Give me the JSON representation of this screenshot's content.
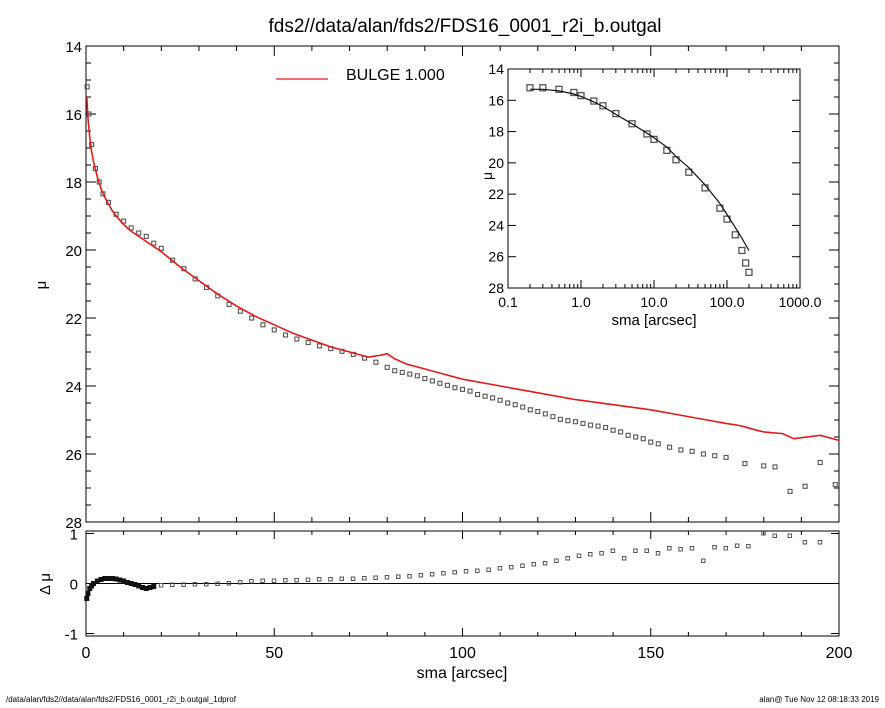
{
  "title": "fds2//data/alan/fds2/FDS16_0001_r2i_b.outgal",
  "footer_left": "/data/alan/fds2//data/alan/fds2/FDS16_0001_r2i_b.outgal_1dprof",
  "footer_right": "alan@  Tue Nov 12 08:18:33 2019",
  "colors": {
    "model": "#e31a1c",
    "data": "#555555",
    "axes": "#000000"
  },
  "chart_data": [
    {
      "type": "line",
      "panel": "main",
      "xlabel": "sma [arcsec]",
      "ylabel": "μ",
      "xlim": [
        0,
        200
      ],
      "ylim": [
        28,
        14
      ],
      "x_ticks": [
        0,
        50,
        100,
        150,
        200
      ],
      "y_ticks": [
        14,
        16,
        18,
        20,
        22,
        24,
        26,
        28
      ],
      "legend": {
        "label": "BULGE  1.000",
        "position": "top"
      },
      "series": [
        {
          "name": "BULGE  1.000",
          "kind": "line",
          "x": [
            0.2,
            0.5,
            1,
            1.5,
            2,
            3,
            4,
            5,
            6,
            7,
            8,
            10,
            12,
            14,
            16,
            18,
            20,
            25,
            30,
            35,
            40,
            45,
            50,
            55,
            60,
            65,
            70,
            75,
            78,
            80,
            82,
            85,
            90,
            95,
            100,
            110,
            120,
            130,
            140,
            150,
            160,
            165,
            170,
            173,
            175,
            178,
            180,
            185,
            188,
            195,
            200
          ],
          "y": [
            15.5,
            16.1,
            16.7,
            17.1,
            17.4,
            17.85,
            18.2,
            18.45,
            18.65,
            18.85,
            19.0,
            19.25,
            19.45,
            19.6,
            19.75,
            19.9,
            20.05,
            20.5,
            20.9,
            21.3,
            21.65,
            21.95,
            22.2,
            22.45,
            22.65,
            22.85,
            23.0,
            23.15,
            23.1,
            23.05,
            23.2,
            23.35,
            23.5,
            23.65,
            23.8,
            24.0,
            24.2,
            24.4,
            24.55,
            24.7,
            24.9,
            25.0,
            25.1,
            25.15,
            25.2,
            25.3,
            25.35,
            25.4,
            25.55,
            25.45,
            25.6
          ]
        },
        {
          "kind": "markers",
          "x": [
            0.3,
            0.8,
            1.5,
            2.5,
            3.5,
            4.5,
            6,
            8,
            10,
            12,
            14,
            16,
            18,
            20,
            23,
            26,
            29,
            32,
            35,
            38,
            41,
            44,
            47,
            50,
            53,
            56,
            59,
            62,
            65,
            68,
            71,
            74,
            77,
            80,
            82,
            84,
            86,
            88,
            90,
            92,
            94,
            96,
            98,
            100,
            102,
            104,
            106,
            108,
            110,
            112,
            114,
            116,
            118,
            120,
            122,
            124,
            126,
            128,
            130,
            132,
            134,
            136,
            138,
            140,
            142,
            144,
            146,
            148,
            150,
            152,
            155,
            158,
            161,
            164,
            167,
            170,
            175,
            180,
            183,
            187,
            191,
            195,
            199
          ],
          "y": [
            15.2,
            16.0,
            16.9,
            17.6,
            18.0,
            18.35,
            18.6,
            18.95,
            19.15,
            19.35,
            19.5,
            19.6,
            19.8,
            19.95,
            20.3,
            20.55,
            20.85,
            21.1,
            21.35,
            21.6,
            21.8,
            22.0,
            22.2,
            22.35,
            22.5,
            22.62,
            22.72,
            22.82,
            22.9,
            22.98,
            23.07,
            23.18,
            23.3,
            23.45,
            23.55,
            23.6,
            23.65,
            23.7,
            23.78,
            23.85,
            23.92,
            23.98,
            24.05,
            24.1,
            24.15,
            24.25,
            24.3,
            24.35,
            24.42,
            24.5,
            24.55,
            24.62,
            24.7,
            24.75,
            24.82,
            24.9,
            24.98,
            25.02,
            25.05,
            25.1,
            25.15,
            25.18,
            25.22,
            25.3,
            25.35,
            25.45,
            25.5,
            25.55,
            25.65,
            25.7,
            25.8,
            25.88,
            25.92,
            26.0,
            26.05,
            26.1,
            26.28,
            26.35,
            26.38,
            27.1,
            26.95,
            26.25,
            26.9
          ]
        }
      ]
    },
    {
      "type": "scatter",
      "panel": "residual",
      "xlabel": "sma [arcsec]",
      "ylabel": "Δ μ",
      "xlim": [
        0,
        200
      ],
      "ylim": [
        -1.05,
        1.05
      ],
      "x_ticks": [
        0,
        50,
        100,
        150,
        200
      ],
      "y_ticks": [
        -1,
        0,
        1
      ],
      "zero_line": 0,
      "series": [
        {
          "kind": "markers",
          "x": [
            0.2,
            0.5,
            1,
            1.5,
            2,
            3,
            4,
            5,
            6,
            7,
            8,
            9,
            10,
            11,
            12,
            13,
            14,
            15,
            16,
            17,
            18,
            20,
            23,
            26,
            29,
            32,
            35,
            38,
            41,
            44,
            47,
            50,
            53,
            56,
            59,
            62,
            65,
            68,
            71,
            74,
            77,
            80,
            83,
            86,
            89,
            92,
            95,
            98,
            101,
            104,
            107,
            110,
            113,
            116,
            119,
            122,
            125,
            128,
            131,
            134,
            137,
            140,
            143,
            146,
            149,
            152,
            155,
            158,
            161,
            164,
            167,
            170,
            173,
            176,
            180,
            183,
            187,
            191,
            195
          ],
          "y": [
            -0.3,
            -0.2,
            -0.1,
            -0.05,
            0.0,
            0.05,
            0.08,
            0.1,
            0.1,
            0.1,
            0.09,
            0.07,
            0.05,
            0.02,
            0.0,
            -0.02,
            -0.05,
            -0.08,
            -0.1,
            -0.08,
            -0.06,
            -0.04,
            -0.03,
            -0.03,
            -0.02,
            -0.02,
            -0.01,
            0.0,
            0.02,
            0.04,
            0.05,
            0.05,
            0.06,
            0.06,
            0.07,
            0.08,
            0.08,
            0.09,
            0.09,
            0.1,
            0.11,
            0.12,
            0.13,
            0.14,
            0.16,
            0.18,
            0.2,
            0.22,
            0.24,
            0.25,
            0.27,
            0.3,
            0.32,
            0.35,
            0.38,
            0.4,
            0.45,
            0.5,
            0.55,
            0.58,
            0.6,
            0.65,
            0.5,
            0.65,
            0.65,
            0.6,
            0.7,
            0.68,
            0.7,
            0.45,
            0.72,
            0.7,
            0.75,
            0.74,
            1.0,
            0.95,
            0.95,
            0.82,
            0.82
          ]
        }
      ]
    },
    {
      "type": "line",
      "panel": "inset",
      "xlabel": "sma [arcsec]",
      "ylabel": "μ",
      "x_scale": "log",
      "xlim": [
        0.1,
        1000
      ],
      "ylim": [
        28,
        14
      ],
      "x_ticks": [
        0.1,
        1,
        10,
        100,
        1000
      ],
      "x_tick_labels": [
        "0.1",
        "1.0",
        "10.0",
        "100.0",
        "1000.0"
      ],
      "y_ticks": [
        14,
        16,
        18,
        20,
        22,
        24,
        26,
        28
      ],
      "series": [
        {
          "kind": "line",
          "x": [
            0.2,
            0.3,
            0.5,
            0.8,
            1,
            1.5,
            2,
            3,
            5,
            8,
            10,
            15,
            20,
            30,
            50,
            80,
            100,
            150,
            200
          ],
          "y": [
            15.3,
            15.3,
            15.4,
            15.6,
            15.75,
            16.1,
            16.4,
            16.9,
            17.5,
            18.1,
            18.4,
            19.0,
            19.6,
            20.3,
            21.4,
            22.6,
            23.3,
            24.6,
            25.6
          ]
        },
        {
          "kind": "markers",
          "x": [
            0.2,
            0.3,
            0.5,
            0.8,
            1,
            1.5,
            2,
            3,
            5,
            8,
            10,
            15,
            20,
            30,
            50,
            80,
            100,
            130,
            160,
            180,
            200
          ],
          "y": [
            15.2,
            15.2,
            15.3,
            15.5,
            15.7,
            16.05,
            16.35,
            16.85,
            17.5,
            18.15,
            18.5,
            19.2,
            19.8,
            20.6,
            21.6,
            22.9,
            23.6,
            24.6,
            25.6,
            26.4,
            27.0
          ]
        }
      ]
    }
  ]
}
